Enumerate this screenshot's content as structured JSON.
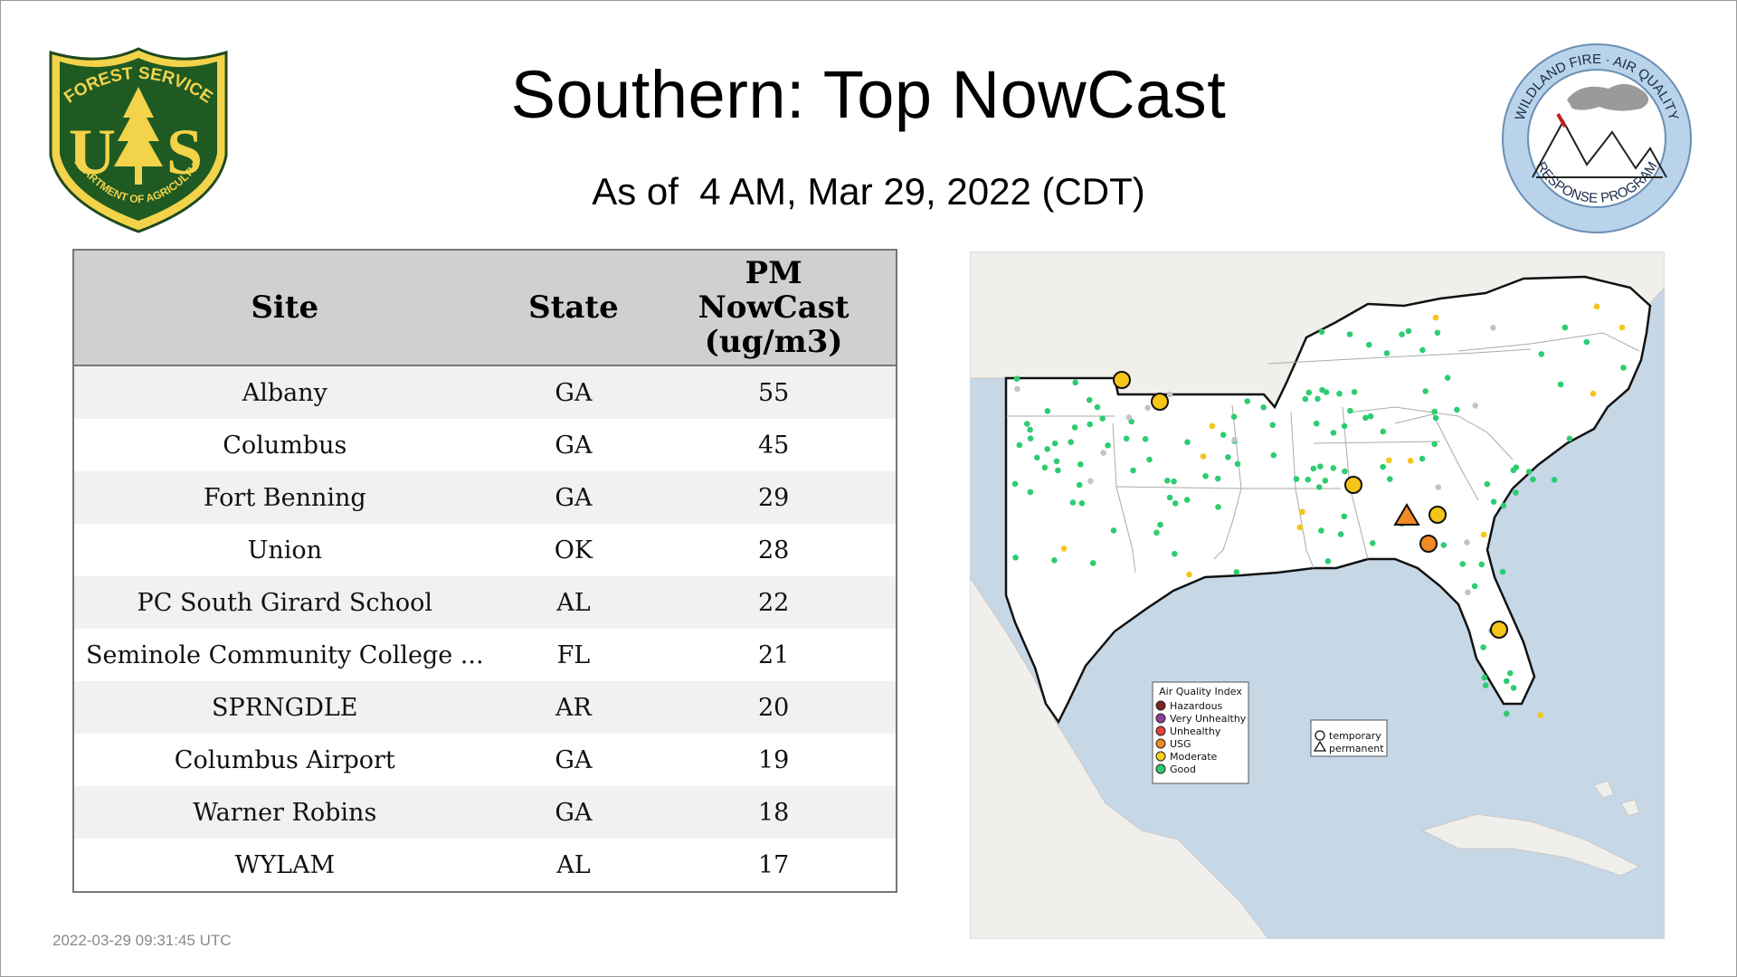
{
  "title": "Southern: Top NowCast",
  "subtitle": "As of  4 AM, Mar 29, 2022 (CDT)",
  "footer_timestamp": "2022-03-29 09:31:45 UTC",
  "logos": {
    "left": {
      "top": "FOREST SERVICE",
      "left_letter": "U",
      "right_letter": "S",
      "bottom": "DEPARTMENT OF AGRICULTURE",
      "icon": "pine-tree-icon"
    },
    "right": {
      "top": "WILDLAND FIRE · AIR QUALITY",
      "bottom": "RESPONSE PROGRAM",
      "icon": "mountain-smoke-icon"
    }
  },
  "table": {
    "headers": [
      "Site",
      "State",
      "PM NowCast (ug/m3)"
    ],
    "rows": [
      {
        "site": "Albany",
        "state": "GA",
        "value": "55"
      },
      {
        "site": "Columbus",
        "state": "GA",
        "value": "45"
      },
      {
        "site": "Fort Benning",
        "state": "GA",
        "value": "29"
      },
      {
        "site": "Union",
        "state": "OK",
        "value": "28"
      },
      {
        "site": "PC South Girard School",
        "state": "AL",
        "value": "22"
      },
      {
        "site": "Seminole Community College ...",
        "state": "FL",
        "value": "21"
      },
      {
        "site": "SPRNGDLE",
        "state": "AR",
        "value": "20"
      },
      {
        "site": "Columbus Airport",
        "state": "GA",
        "value": "19"
      },
      {
        "site": "Warner Robins",
        "state": "GA",
        "value": "18"
      },
      {
        "site": "WYLAM",
        "state": "AL",
        "value": "17"
      }
    ]
  },
  "map": {
    "legend_aqi": {
      "title": "Air Quality Index",
      "items": [
        {
          "label": "Hazardous",
          "color": "#7e2320"
        },
        {
          "label": "Very Unhealthy",
          "color": "#8f3f97"
        },
        {
          "label": "Unhealthy",
          "color": "#e8413a"
        },
        {
          "label": "USG",
          "color": "#f08a24"
        },
        {
          "label": "Moderate",
          "color": "#f5cf1e"
        },
        {
          "label": "Good",
          "color": "#2ecc71"
        }
      ]
    },
    "legend_type": {
      "items": [
        {
          "label": "temporary",
          "shape": "circle"
        },
        {
          "label": "permanent",
          "shape": "triangle"
        }
      ]
    },
    "colors": {
      "water": "#c6d7e6",
      "land": "#f1efeb",
      "region": "#ffffff",
      "good": "#2ecc71",
      "moderate": "#f5c518",
      "usg": "#f08a24",
      "nodata": "#c4c4c4"
    }
  }
}
